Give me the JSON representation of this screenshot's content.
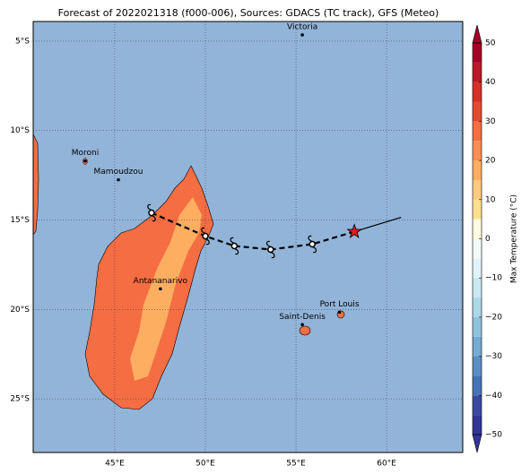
{
  "title": "Forecast of 2022021318 (f000-006), Sources: GDACS (TC track), GFS (Meteo)",
  "map": {
    "lonlim": [
      40.5,
      64.2
    ],
    "latlim": [
      -3.9,
      -28
    ],
    "lon_ticks": [
      {
        "value": 45,
        "label": "45°E"
      },
      {
        "value": 50,
        "label": "50°E"
      },
      {
        "value": 55,
        "label": "55°E"
      },
      {
        "value": 60,
        "label": "60°E"
      }
    ],
    "lat_ticks": [
      {
        "value": -5,
        "label": "5°S"
      },
      {
        "value": -10,
        "label": "10°S"
      },
      {
        "value": -15,
        "label": "15°S"
      },
      {
        "value": -20,
        "label": "20°S"
      },
      {
        "value": -25,
        "label": "25°S"
      }
    ]
  },
  "cities": [
    {
      "name": "Victoria",
      "lon": 55.35,
      "lat": -4.65
    },
    {
      "name": "Moroni",
      "lon": 43.37,
      "lat": -11.7
    },
    {
      "name": "Mamoudzou",
      "lon": 45.2,
      "lat": -12.75
    },
    {
      "name": "Antananarivo",
      "lon": 47.52,
      "lat": -18.85
    },
    {
      "name": "Saint-Denis",
      "lon": 55.35,
      "lat": -20.85
    },
    {
      "name": "Port Louis",
      "lon": 57.4,
      "lat": -20.15
    }
  ],
  "track": {
    "lon": [
      60.8,
      58.22,
      55.9,
      53.6,
      51.6,
      50.0,
      47.03
    ],
    "lat": [
      -14.85,
      -15.65,
      -16.35,
      -16.65,
      -16.45,
      -15.9,
      -14.6
    ]
  },
  "colorbar": {
    "label": "Max Temperature (°C)",
    "lim": [
      -50,
      50
    ],
    "ticks": [
      50,
      40,
      30,
      20,
      10,
      0,
      {
        "value": -10,
        "label": "−10"
      },
      {
        "value": -20,
        "label": "−20"
      },
      {
        "value": -30,
        "label": "−30"
      },
      {
        "value": -40,
        "label": "−40"
      },
      {
        "value": -50,
        "label": "−50"
      }
    ],
    "colors": [
      "#313695",
      "#3a4a9e",
      "#4575b4",
      "#5b8fc2",
      "#74add1",
      "#90c2dd",
      "#abd9e9",
      "#c8e7f1",
      "#e0f3f8",
      "#f3faf8",
      "#fffbe0",
      "#fee090",
      "#fec980",
      "#fdae61",
      "#f88e52",
      "#f46d43",
      "#e34a33",
      "#d73027",
      "#bd1a28",
      "#a50026"
    ]
  }
}
